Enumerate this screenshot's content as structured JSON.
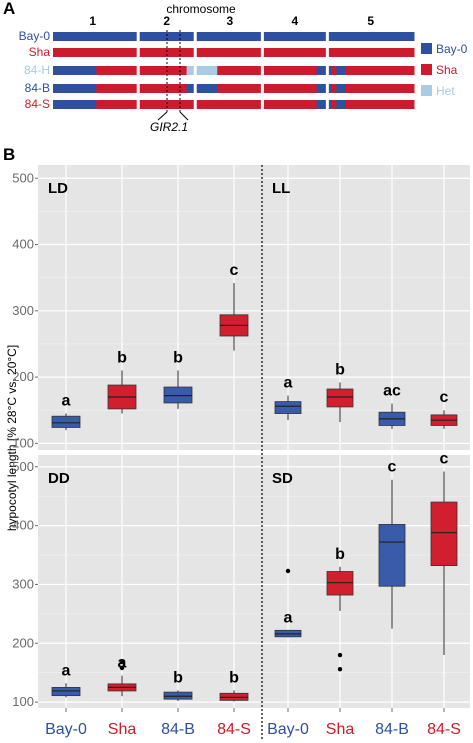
{
  "panel_a": {
    "letter": "A",
    "chromosome_title": "chromosome",
    "chromosome_numbers": [
      "1",
      "2",
      "3",
      "4",
      "5"
    ],
    "rows": [
      {
        "label": "Bay-0",
        "label_color": "#2f4f9f",
        "segments": [
          [
            "B",
            0,
            1
          ]
        ]
      },
      {
        "label": "Sha",
        "label_color": "#cc1b2c",
        "segments": [
          [
            "S",
            0,
            1
          ]
        ]
      },
      {
        "label": "84-H",
        "label_color": "#a9cbe3",
        "segments": [
          [
            "B",
            0,
            0.12
          ],
          [
            "S",
            0.12,
            0.37
          ],
          [
            "H",
            0.37,
            0.455
          ],
          [
            "S",
            0.455,
            0.73
          ],
          [
            "B",
            0.73,
            0.77
          ],
          [
            "S",
            0.77,
            0.785
          ],
          [
            "B",
            0.785,
            0.81
          ],
          [
            "S",
            0.81,
            1
          ]
        ]
      },
      {
        "label": "84-B",
        "label_color": "#2f4f9f",
        "segments": [
          [
            "B",
            0,
            0.12
          ],
          [
            "S",
            0.12,
            0.37
          ],
          [
            "B",
            0.37,
            0.455
          ],
          [
            "S",
            0.455,
            0.73
          ],
          [
            "B",
            0.73,
            0.77
          ],
          [
            "S",
            0.77,
            0.785
          ],
          [
            "B",
            0.785,
            0.81
          ],
          [
            "S",
            0.81,
            1
          ]
        ]
      },
      {
        "label": "84-S",
        "label_color": "#cc1b2c",
        "segments": [
          [
            "B",
            0,
            0.12
          ],
          [
            "S",
            0.12,
            0.37
          ],
          [
            "S",
            0.37,
            0.455
          ],
          [
            "S",
            0.455,
            0.73
          ],
          [
            "B",
            0.73,
            0.77
          ],
          [
            "S",
            0.77,
            0.785
          ],
          [
            "B",
            0.785,
            0.81
          ],
          [
            "S",
            0.81,
            1
          ]
        ]
      }
    ],
    "locus_label": "GIR2.1",
    "legend": [
      {
        "key": "B",
        "label": "Bay-0",
        "color": "#2f4f9f"
      },
      {
        "key": "S",
        "label": "Sha",
        "color": "#cc1b2c"
      },
      {
        "key": "H",
        "label": "Het",
        "color": "#a9cbe3"
      }
    ],
    "colors": {
      "B": "#2f4f9f",
      "S": "#cc1b2c",
      "H": "#a9cbe3"
    }
  },
  "panel_b": {
    "letter": "B",
    "ylabel": "hypocotyl length [% 28°C vs. 20°C]"
  },
  "chart_data": {
    "type": "box",
    "ylabel": "hypocotyl length [% 28°C vs. 20°C]",
    "ylim": [
      90,
      520
    ],
    "yticks": [
      100,
      200,
      300,
      400,
      500
    ],
    "categories": [
      "Bay-0",
      "Sha",
      "84-B",
      "84-S"
    ],
    "category_colors": [
      "#2f4f9f",
      "#cc1b2c",
      "#2f4f9f",
      "#cc1b2c"
    ],
    "box_colors": [
      "#3a5ba9",
      "#d21f2f",
      "#3a5ba9",
      "#d21f2f"
    ],
    "panels": [
      {
        "condition": "LD",
        "significance": [
          "a",
          "b",
          "b",
          "c"
        ],
        "boxes": [
          {
            "min": 120,
            "q1": 124,
            "median": 131,
            "q3": 141,
            "max": 145,
            "outliers": []
          },
          {
            "min": 145,
            "q1": 152,
            "median": 170,
            "q3": 188,
            "max": 210,
            "outliers": []
          },
          {
            "min": 152,
            "q1": 161,
            "median": 172,
            "q3": 185,
            "max": 210,
            "outliers": []
          },
          {
            "min": 240,
            "q1": 262,
            "median": 278,
            "q3": 294,
            "max": 342,
            "outliers": []
          }
        ]
      },
      {
        "condition": "LL",
        "significance": [
          "a",
          "b",
          "ac",
          "c"
        ],
        "boxes": [
          {
            "min": 135,
            "q1": 145,
            "median": 156,
            "q3": 163,
            "max": 172,
            "outliers": []
          },
          {
            "min": 132,
            "q1": 155,
            "median": 170,
            "q3": 182,
            "max": 192,
            "outliers": []
          },
          {
            "min": 122,
            "q1": 127,
            "median": 137,
            "q3": 147,
            "max": 160,
            "outliers": []
          },
          {
            "min": 122,
            "q1": 127,
            "median": 135,
            "q3": 143,
            "max": 150,
            "outliers": []
          }
        ]
      },
      {
        "condition": "DD",
        "significance": [
          "a",
          "a",
          "b",
          "b"
        ],
        "boxes": [
          {
            "min": 108,
            "q1": 111,
            "median": 119,
            "q3": 125,
            "max": 132,
            "outliers": []
          },
          {
            "min": 110,
            "q1": 119,
            "median": 125,
            "q3": 131,
            "max": 145,
            "outliers": [
              158,
              168
            ]
          },
          {
            "min": 102,
            "q1": 105,
            "median": 110,
            "q3": 117,
            "max": 120,
            "outliers": []
          },
          {
            "min": 101,
            "q1": 103,
            "median": 108,
            "q3": 115,
            "max": 120,
            "outliers": []
          }
        ]
      },
      {
        "condition": "SD",
        "significance": [
          "a",
          "b",
          "c",
          "c"
        ],
        "boxes": [
          {
            "min": 210,
            "q1": 211,
            "median": 216,
            "q3": 222,
            "max": 222,
            "outliers": [
              323
            ]
          },
          {
            "min": 255,
            "q1": 282,
            "median": 303,
            "q3": 322,
            "max": 330,
            "outliers": [
              180,
              156
            ]
          },
          {
            "min": 225,
            "q1": 297,
            "median": 372,
            "q3": 402,
            "max": 478,
            "outliers": []
          },
          {
            "min": 180,
            "q1": 332,
            "median": 388,
            "q3": 440,
            "max": 492,
            "outliers": []
          }
        ]
      }
    ]
  }
}
